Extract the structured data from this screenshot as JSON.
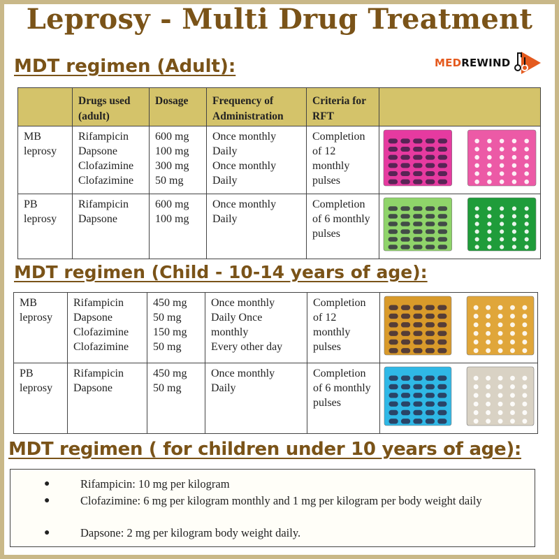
{
  "title": "Leprosy -  Multi Drug Treatment",
  "brand": {
    "part1": "MED",
    "part2": "REWIND",
    "icon": "play-arrow-logo-icon",
    "accent": "#e45a1e"
  },
  "adult": {
    "heading": "MDT regimen (Adult):",
    "headers": {
      "drugs": [
        "Drugs used",
        "(adult)"
      ],
      "dosage": "Dosage",
      "frequency": [
        "Frequency of",
        "Administration"
      ],
      "criteria": [
        "Criteria for",
        "RFT"
      ]
    },
    "rows": [
      {
        "type": [
          "MB",
          "leprosy"
        ],
        "drugs": [
          "Rifampicin",
          "Dapsone",
          "Clofazimine",
          "Clofazimine"
        ],
        "dosage": [
          "600 mg",
          "100 mg",
          "300 mg",
          "50 mg"
        ],
        "frequency": [
          "Once monthly",
          "Daily",
          "Once monthly",
          "Daily"
        ],
        "criteria": [
          "Completion",
          "of 12",
          "monthly",
          "pulses"
        ],
        "pack_colors": [
          "#e63aa0",
          "#ec5aa6"
        ]
      },
      {
        "type": [
          "PB",
          "leprosy"
        ],
        "drugs": [
          "Rifampicin",
          "Dapsone"
        ],
        "dosage": [
          "600 mg",
          "100 mg"
        ],
        "frequency": [
          "Once monthly",
          "Daily"
        ],
        "criteria": [
          "Completion",
          "of 6 monthly",
          "pulses"
        ],
        "pack_colors": [
          "#8fd46a",
          "#1f9c3a"
        ]
      }
    ]
  },
  "child": {
    "heading": "MDT regimen (Child - 10-14 years of age):",
    "rows": [
      {
        "type": [
          "MB",
          "leprosy"
        ],
        "drugs": [
          "Rifampicin",
          "Dapsone",
          "Clofazimine",
          "Clofazimine"
        ],
        "dosage": [
          "450 mg",
          "50 mg",
          "150 mg",
          "50 mg"
        ],
        "frequency": [
          "Once monthly",
          "Daily Once",
          "monthly",
          "Every other day"
        ],
        "criteria": [
          "Completion",
          "of 12",
          "monthly",
          "pulses"
        ],
        "pack_colors": [
          "#d99a2a",
          "#e0a63a"
        ]
      },
      {
        "type": [
          "PB",
          "leprosy"
        ],
        "drugs": [
          "Rifampicin",
          "Dapsone"
        ],
        "dosage": [
          "450 mg",
          "50 mg"
        ],
        "frequency": [
          "Once monthly",
          "Daily"
        ],
        "criteria": [
          "Completion",
          "of 6 monthly",
          "pulses"
        ],
        "pack_colors": [
          "#2fb8e6",
          "#d9d2c4"
        ]
      }
    ]
  },
  "under10": {
    "heading": "MDT regimen ( for children under 10 years of age):",
    "bullets": [
      "Rifampicin: 10 mg per kilogram",
      "Clofazimine: 6 mg per kilogram monthly and 1 mg per kilogram per body weight daily",
      "Dapsone: 2 mg per kilogram body weight daily."
    ]
  },
  "colors": {
    "heading": "#7a5318",
    "header_fill": "#d4c36a",
    "frame": "#c9b889"
  }
}
